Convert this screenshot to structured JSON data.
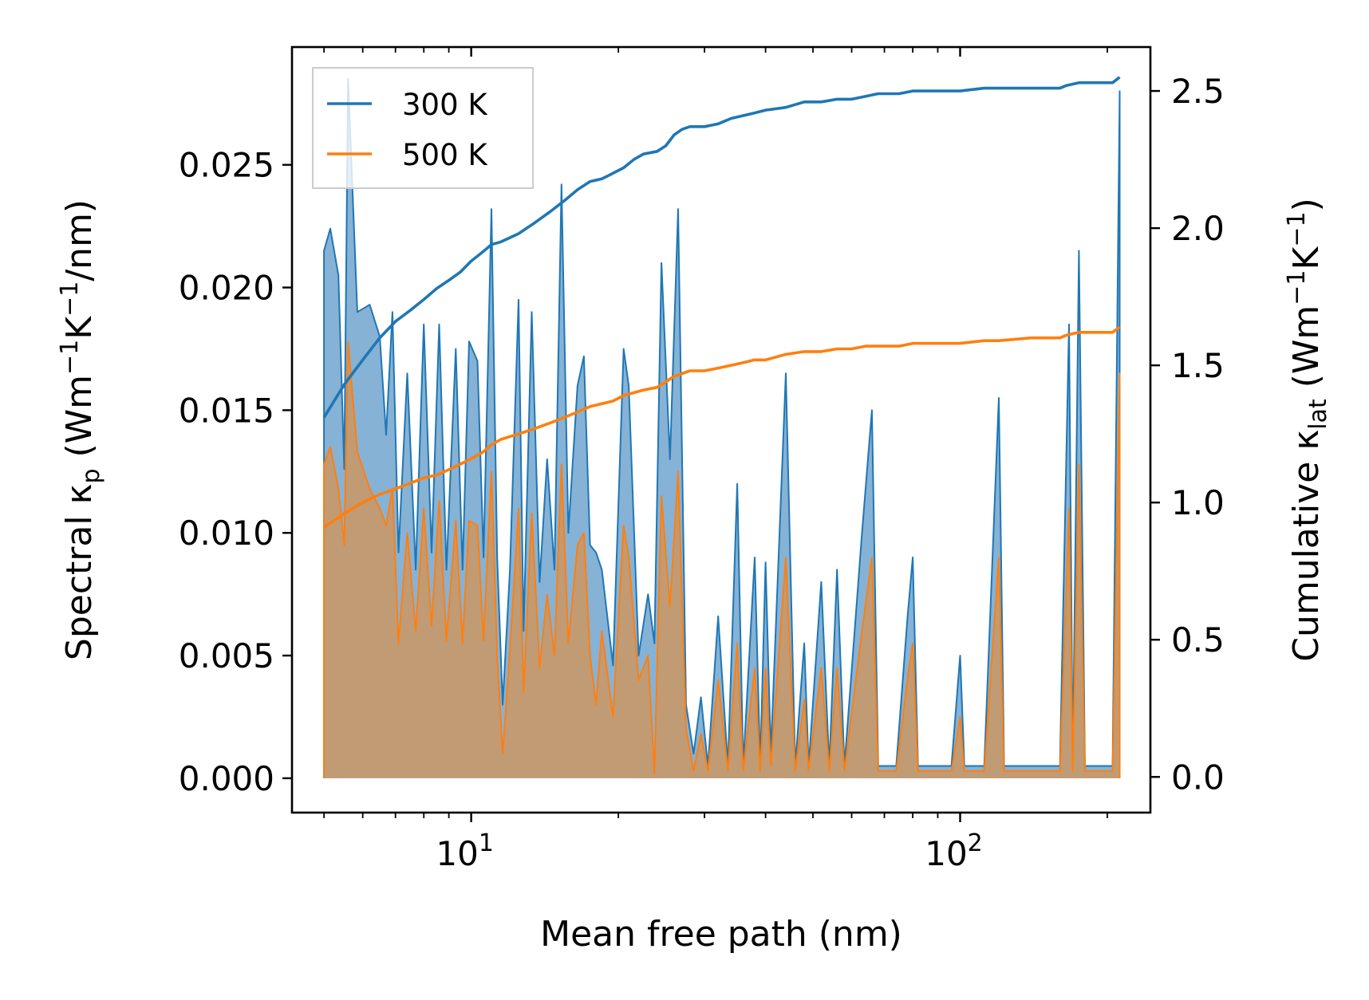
{
  "chart_data": {
    "type": "area+line (dual axis)",
    "xscale": "log",
    "xlabel": "Mean free path (nm)",
    "xlim": [
      4.3,
      245
    ],
    "xticks": [
      {
        "value": 10,
        "base": "10",
        "exp": "1"
      },
      {
        "value": 100,
        "base": "10",
        "exp": "2"
      }
    ],
    "ylabel_left": {
      "main": "Spectral κ",
      "sub": "p",
      "unit_a": " (Wm",
      "sup1": "−1",
      "unit_b": "K",
      "sup2": "−1",
      "unit_c": "/nm)"
    },
    "ylim_left": [
      -0.0014,
      0.0298
    ],
    "yticks_left": [
      0.0,
      0.005,
      0.01,
      0.015,
      0.02,
      0.025
    ],
    "yticklabels_left": [
      "0.000",
      "0.005",
      "0.010",
      "0.015",
      "0.020",
      "0.025"
    ],
    "ylabel_right": {
      "main": "Cumulative κ",
      "sub": "lat",
      "unit_a": " (Wm",
      "sup1": "−1",
      "unit_b": "K",
      "sup2": "−1",
      "unit_c": ")"
    },
    "ylim_right": [
      -0.13,
      2.66
    ],
    "yticks_right": [
      0.0,
      0.5,
      1.0,
      1.5,
      2.0,
      2.5
    ],
    "yticklabels_right": [
      "0.0",
      "0.5",
      "1.0",
      "1.5",
      "2.0",
      "2.5"
    ],
    "legend": {
      "placement": "top-left",
      "entries": [
        {
          "label": "300 K",
          "color": "#1f77b4"
        },
        {
          "label": "500 K",
          "color": "#ff7f0e"
        }
      ]
    },
    "series": [
      {
        "name": "300 K",
        "color": "#1f77b4",
        "spectral": [
          [
            5.0,
            0
          ],
          [
            5.0,
            0.0215
          ],
          [
            5.15,
            0.0224
          ],
          [
            5.35,
            0.0205
          ],
          [
            5.5,
            0.0126
          ],
          [
            5.6,
            0.0285
          ],
          [
            5.85,
            0.019
          ],
          [
            6.2,
            0.0193
          ],
          [
            6.5,
            0.018
          ],
          [
            6.7,
            0.014
          ],
          [
            6.9,
            0.019
          ],
          [
            7.1,
            0.0092
          ],
          [
            7.4,
            0.0165
          ],
          [
            7.7,
            0.0085
          ],
          [
            8.0,
            0.0185
          ],
          [
            8.3,
            0.0092
          ],
          [
            8.6,
            0.0185
          ],
          [
            8.9,
            0.0085
          ],
          [
            9.3,
            0.0175
          ],
          [
            9.6,
            0.0085
          ],
          [
            9.9,
            0.0178
          ],
          [
            10.3,
            0.017
          ],
          [
            10.6,
            0.009
          ],
          [
            11.0,
            0.0232
          ],
          [
            11.3,
            0.009
          ],
          [
            11.6,
            0.003
          ],
          [
            12.0,
            0.0085
          ],
          [
            12.5,
            0.0195
          ],
          [
            12.8,
            0.006
          ],
          [
            13.3,
            0.019
          ],
          [
            13.8,
            0.008
          ],
          [
            14.3,
            0.013
          ],
          [
            14.8,
            0.0085
          ],
          [
            15.3,
            0.0242
          ],
          [
            15.8,
            0.01
          ],
          [
            16.5,
            0.016
          ],
          [
            17.0,
            0.0172
          ],
          [
            17.5,
            0.0095
          ],
          [
            18.0,
            0.0092
          ],
          [
            18.5,
            0.0085
          ],
          [
            19.5,
            0.0046
          ],
          [
            20.5,
            0.0175
          ],
          [
            21.0,
            0.016
          ],
          [
            22.0,
            0.005
          ],
          [
            23.0,
            0.0075
          ],
          [
            23.7,
            0.0055
          ],
          [
            24.5,
            0.021
          ],
          [
            25.5,
            0.013
          ],
          [
            26.5,
            0.0232
          ],
          [
            27.5,
            0.003
          ],
          [
            28.5,
            0.001
          ],
          [
            29.5,
            0.0033
          ],
          [
            30.5,
            0.0005
          ],
          [
            32.0,
            0.0066
          ],
          [
            33.5,
            0.0005
          ],
          [
            35.0,
            0.012
          ],
          [
            36.0,
            0.0005
          ],
          [
            38.0,
            0.009
          ],
          [
            39.0,
            0.0005
          ],
          [
            40.0,
            0.0088
          ],
          [
            41.0,
            0.001
          ],
          [
            44.0,
            0.0165
          ],
          [
            46.0,
            0.0005
          ],
          [
            48.0,
            0.0055
          ],
          [
            49.0,
            0.0005
          ],
          [
            52.0,
            0.008
          ],
          [
            54.0,
            0.0005
          ],
          [
            56.0,
            0.0085
          ],
          [
            58.0,
            0.0005
          ],
          [
            63.0,
            0.01
          ],
          [
            66.0,
            0.015
          ],
          [
            68.0,
            0.0005
          ],
          [
            74.0,
            0.0005
          ],
          [
            78.0,
            0.0065
          ],
          [
            80.0,
            0.009
          ],
          [
            82.0,
            0.0005
          ],
          [
            92.0,
            0.0005
          ],
          [
            96.0,
            0.0005
          ],
          [
            100.0,
            0.005
          ],
          [
            102.0,
            0.0005
          ],
          [
            112.0,
            0.0005
          ],
          [
            120.0,
            0.0155
          ],
          [
            123.0,
            0.0005
          ],
          [
            140.0,
            0.0005
          ],
          [
            160.0,
            0.0005
          ],
          [
            167.0,
            0.0185
          ],
          [
            170.0,
            0.0005
          ],
          [
            175.0,
            0.0215
          ],
          [
            180.0,
            0.0005
          ],
          [
            205.0,
            0.0005
          ],
          [
            212.0,
            0.028
          ],
          [
            212.0,
            0
          ]
        ],
        "cumulative": [
          [
            5.0,
            1.31
          ],
          [
            5.5,
            1.43
          ],
          [
            6.0,
            1.52
          ],
          [
            6.5,
            1.6
          ],
          [
            7.0,
            1.66
          ],
          [
            7.5,
            1.7
          ],
          [
            8.0,
            1.74
          ],
          [
            8.5,
            1.78
          ],
          [
            9.0,
            1.81
          ],
          [
            9.5,
            1.84
          ],
          [
            10.0,
            1.88
          ],
          [
            10.5,
            1.91
          ],
          [
            11.0,
            1.94
          ],
          [
            11.5,
            1.95
          ],
          [
            12.5,
            1.98
          ],
          [
            13.5,
            2.02
          ],
          [
            14.5,
            2.06
          ],
          [
            15.5,
            2.1
          ],
          [
            16.5,
            2.14
          ],
          [
            17.5,
            2.17
          ],
          [
            18.5,
            2.18
          ],
          [
            19.5,
            2.2
          ],
          [
            20.5,
            2.22
          ],
          [
            21.5,
            2.25
          ],
          [
            22.5,
            2.27
          ],
          [
            24.0,
            2.28
          ],
          [
            25.0,
            2.3
          ],
          [
            26.0,
            2.34
          ],
          [
            27.0,
            2.36
          ],
          [
            28.0,
            2.37
          ],
          [
            30.0,
            2.37
          ],
          [
            32.0,
            2.38
          ],
          [
            34.0,
            2.4
          ],
          [
            36.0,
            2.41
          ],
          [
            38.0,
            2.42
          ],
          [
            40.0,
            2.43
          ],
          [
            44.0,
            2.44
          ],
          [
            48.0,
            2.46
          ],
          [
            52.0,
            2.46
          ],
          [
            56.0,
            2.47
          ],
          [
            60.0,
            2.47
          ],
          [
            64.0,
            2.48
          ],
          [
            68.0,
            2.49
          ],
          [
            75.0,
            2.49
          ],
          [
            80.0,
            2.5
          ],
          [
            88.0,
            2.5
          ],
          [
            100.0,
            2.5
          ],
          [
            112.0,
            2.51
          ],
          [
            120.0,
            2.51
          ],
          [
            140.0,
            2.51
          ],
          [
            160.0,
            2.51
          ],
          [
            165.0,
            2.52
          ],
          [
            175.0,
            2.53
          ],
          [
            190.0,
            2.53
          ],
          [
            205.0,
            2.53
          ],
          [
            212.0,
            2.55
          ]
        ]
      },
      {
        "name": "500 K",
        "color": "#ff7f0e",
        "spectral": [
          [
            5.0,
            0
          ],
          [
            5.0,
            0.0128
          ],
          [
            5.15,
            0.0135
          ],
          [
            5.35,
            0.0118
          ],
          [
            5.5,
            0.0095
          ],
          [
            5.6,
            0.0178
          ],
          [
            5.85,
            0.0133
          ],
          [
            6.2,
            0.0118
          ],
          [
            6.5,
            0.011
          ],
          [
            6.7,
            0.0103
          ],
          [
            6.9,
            0.0118
          ],
          [
            7.1,
            0.0055
          ],
          [
            7.4,
            0.01
          ],
          [
            7.7,
            0.006
          ],
          [
            8.0,
            0.011
          ],
          [
            8.3,
            0.0062
          ],
          [
            8.6,
            0.0113
          ],
          [
            8.9,
            0.0056
          ],
          [
            9.3,
            0.0105
          ],
          [
            9.6,
            0.0055
          ],
          [
            9.9,
            0.0105
          ],
          [
            10.3,
            0.0103
          ],
          [
            10.6,
            0.0056
          ],
          [
            11.0,
            0.0125
          ],
          [
            11.3,
            0.005
          ],
          [
            11.6,
            0.001
          ],
          [
            12.0,
            0.0052
          ],
          [
            12.5,
            0.011
          ],
          [
            12.8,
            0.0035
          ],
          [
            13.3,
            0.0108
          ],
          [
            13.8,
            0.0045
          ],
          [
            14.3,
            0.0075
          ],
          [
            14.8,
            0.005
          ],
          [
            15.3,
            0.0128
          ],
          [
            15.8,
            0.0055
          ],
          [
            16.5,
            0.0095
          ],
          [
            17.0,
            0.01
          ],
          [
            17.5,
            0.005
          ],
          [
            18.0,
            0.003
          ],
          [
            18.5,
            0.006
          ],
          [
            19.5,
            0.0025
          ],
          [
            20.5,
            0.0103
          ],
          [
            21.0,
            0.009
          ],
          [
            22.0,
            0.004
          ],
          [
            23.0,
            0.005
          ],
          [
            23.7,
            0.0002
          ],
          [
            24.5,
            0.0115
          ],
          [
            25.5,
            0.007
          ],
          [
            26.5,
            0.0125
          ],
          [
            27.5,
            0.002
          ],
          [
            28.5,
            0.0003
          ],
          [
            29.5,
            0.0018
          ],
          [
            30.5,
            0.0003
          ],
          [
            32.0,
            0.004
          ],
          [
            33.5,
            0.0003
          ],
          [
            35.0,
            0.0055
          ],
          [
            36.0,
            0.0003
          ],
          [
            38.0,
            0.0045
          ],
          [
            39.0,
            0.0003
          ],
          [
            40.0,
            0.0045
          ],
          [
            41.0,
            0.0005
          ],
          [
            44.0,
            0.009
          ],
          [
            46.0,
            0.0003
          ],
          [
            48.0,
            0.0032
          ],
          [
            49.0,
            0.0003
          ],
          [
            52.0,
            0.0045
          ],
          [
            54.0,
            0.0003
          ],
          [
            56.0,
            0.0045
          ],
          [
            58.0,
            0.0003
          ],
          [
            63.0,
            0.006
          ],
          [
            66.0,
            0.009
          ],
          [
            68.0,
            0.0003
          ],
          [
            74.0,
            0.0003
          ],
          [
            78.0,
            0.004
          ],
          [
            80.0,
            0.0055
          ],
          [
            82.0,
            0.0003
          ],
          [
            92.0,
            0.0003
          ],
          [
            96.0,
            0.0003
          ],
          [
            100.0,
            0.0025
          ],
          [
            102.0,
            0.0003
          ],
          [
            112.0,
            0.0003
          ],
          [
            120.0,
            0.009
          ],
          [
            123.0,
            0.0003
          ],
          [
            140.0,
            0.0003
          ],
          [
            160.0,
            0.0003
          ],
          [
            167.0,
            0.011
          ],
          [
            170.0,
            0.0003
          ],
          [
            175.0,
            0.0128
          ],
          [
            180.0,
            0.0003
          ],
          [
            205.0,
            0.0003
          ],
          [
            212.0,
            0.0165
          ],
          [
            212.0,
            0
          ]
        ],
        "cumulative": [
          [
            5.0,
            0.91
          ],
          [
            5.5,
            0.96
          ],
          [
            6.0,
            1.0
          ],
          [
            6.5,
            1.03
          ],
          [
            7.0,
            1.05
          ],
          [
            7.5,
            1.07
          ],
          [
            8.0,
            1.09
          ],
          [
            8.5,
            1.1
          ],
          [
            9.0,
            1.12
          ],
          [
            9.5,
            1.14
          ],
          [
            10.0,
            1.16
          ],
          [
            10.5,
            1.18
          ],
          [
            11.0,
            1.21
          ],
          [
            11.5,
            1.23
          ],
          [
            12.5,
            1.25
          ],
          [
            13.5,
            1.27
          ],
          [
            14.5,
            1.29
          ],
          [
            15.5,
            1.31
          ],
          [
            16.5,
            1.33
          ],
          [
            17.5,
            1.35
          ],
          [
            18.5,
            1.36
          ],
          [
            19.5,
            1.37
          ],
          [
            20.5,
            1.39
          ],
          [
            21.5,
            1.4
          ],
          [
            22.5,
            1.41
          ],
          [
            24.0,
            1.42
          ],
          [
            25.0,
            1.44
          ],
          [
            26.0,
            1.46
          ],
          [
            27.0,
            1.47
          ],
          [
            28.0,
            1.48
          ],
          [
            30.0,
            1.48
          ],
          [
            32.0,
            1.49
          ],
          [
            34.0,
            1.5
          ],
          [
            36.0,
            1.51
          ],
          [
            38.0,
            1.52
          ],
          [
            40.0,
            1.52
          ],
          [
            44.0,
            1.54
          ],
          [
            48.0,
            1.55
          ],
          [
            52.0,
            1.55
          ],
          [
            56.0,
            1.56
          ],
          [
            60.0,
            1.56
          ],
          [
            64.0,
            1.57
          ],
          [
            68.0,
            1.57
          ],
          [
            75.0,
            1.57
          ],
          [
            80.0,
            1.58
          ],
          [
            88.0,
            1.58
          ],
          [
            100.0,
            1.58
          ],
          [
            112.0,
            1.59
          ],
          [
            120.0,
            1.59
          ],
          [
            140.0,
            1.6
          ],
          [
            160.0,
            1.6
          ],
          [
            165.0,
            1.61
          ],
          [
            175.0,
            1.62
          ],
          [
            190.0,
            1.62
          ],
          [
            205.0,
            1.62
          ],
          [
            212.0,
            1.64
          ]
        ]
      }
    ]
  }
}
